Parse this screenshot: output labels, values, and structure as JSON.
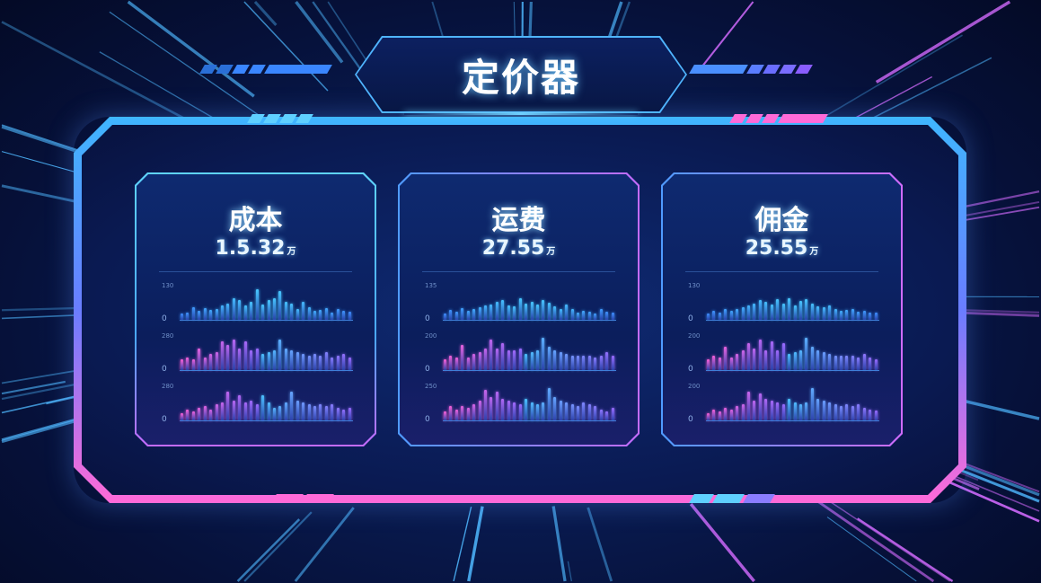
{
  "header": {
    "title": "定价器"
  },
  "colors": {
    "cyan": "#47c8ff",
    "blue": "#3a78ff",
    "pink": "#ff5fd7",
    "purple": "#9a6bff",
    "card_border_left": "#52c6ff",
    "card_border_right": "#c46bff"
  },
  "unit": "万",
  "cards": [
    {
      "name": "成本",
      "value": "1.5.32",
      "charts": [
        {
          "ymax": "130",
          "ymin": "0",
          "values": [
            18,
            20,
            35,
            25,
            32,
            28,
            30,
            40,
            45,
            60,
            55,
            40,
            50,
            85,
            42,
            55,
            60,
            80,
            50,
            45,
            30,
            50,
            35,
            25,
            28,
            32,
            20,
            30,
            25,
            22
          ]
        },
        {
          "ymax": "280",
          "ymin": "0",
          "values": [
            30,
            35,
            30,
            60,
            35,
            45,
            50,
            80,
            70,
            85,
            60,
            80,
            55,
            60,
            45,
            50,
            55,
            85,
            60,
            55,
            50,
            45,
            40,
            45,
            40,
            50,
            35,
            40,
            45,
            35
          ]
        },
        {
          "ymax": "280",
          "ymin": "0",
          "values": [
            20,
            30,
            25,
            35,
            40,
            30,
            45,
            50,
            80,
            55,
            70,
            50,
            55,
            45,
            70,
            50,
            35,
            40,
            50,
            80,
            55,
            50,
            45,
            40,
            45,
            40,
            45,
            35,
            30,
            35
          ]
        }
      ]
    },
    {
      "name": "运费",
      "value": "27.55",
      "charts": [
        {
          "ymax": "135",
          "ymin": "0",
          "values": [
            18,
            28,
            22,
            32,
            25,
            30,
            35,
            40,
            42,
            50,
            55,
            40,
            38,
            60,
            45,
            50,
            42,
            55,
            48,
            38,
            30,
            42,
            30,
            20,
            25,
            22,
            18,
            30,
            22,
            20
          ]
        },
        {
          "ymax": "200",
          "ymin": "0",
          "values": [
            30,
            40,
            35,
            70,
            35,
            45,
            50,
            60,
            85,
            60,
            75,
            55,
            55,
            60,
            45,
            50,
            55,
            90,
            65,
            55,
            50,
            45,
            40,
            40,
            40,
            40,
            35,
            40,
            50,
            40
          ]
        },
        {
          "ymax": "250",
          "ymin": "0",
          "values": [
            25,
            40,
            30,
            40,
            35,
            45,
            55,
            85,
            65,
            80,
            60,
            55,
            50,
            45,
            60,
            50,
            45,
            50,
            90,
            65,
            55,
            50,
            45,
            40,
            50,
            45,
            40,
            30,
            25,
            35
          ]
        }
      ]
    },
    {
      "name": "佣金",
      "value": "25.55",
      "charts": [
        {
          "ymax": "130",
          "ymin": "0",
          "values": [
            18,
            25,
            20,
            30,
            25,
            30,
            35,
            40,
            45,
            55,
            50,
            42,
            58,
            45,
            60,
            40,
            52,
            58,
            45,
            38,
            35,
            40,
            30,
            25,
            28,
            30,
            22,
            25,
            20,
            20
          ]
        },
        {
          "ymax": "200",
          "ymin": "0",
          "values": [
            30,
            40,
            35,
            65,
            35,
            45,
            55,
            75,
            60,
            85,
            55,
            80,
            55,
            75,
            45,
            50,
            55,
            90,
            65,
            55,
            50,
            45,
            40,
            40,
            40,
            40,
            35,
            45,
            35,
            30
          ]
        },
        {
          "ymax": "200",
          "ymin": "0",
          "values": [
            20,
            30,
            25,
            35,
            30,
            40,
            45,
            80,
            55,
            75,
            60,
            55,
            50,
            45,
            60,
            50,
            45,
            50,
            90,
            60,
            55,
            50,
            45,
            40,
            45,
            40,
            45,
            35,
            30,
            28
          ]
        }
      ]
    }
  ]
}
